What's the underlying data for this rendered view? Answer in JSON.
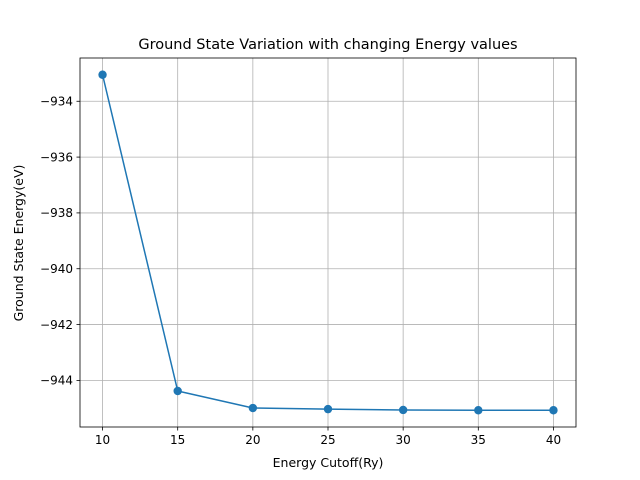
{
  "chart_data": {
    "type": "line",
    "title": "Ground State Variation with changing Energy values",
    "xlabel": "Energy Cutoff(Ry)",
    "ylabel": "Ground State Energy(eV)",
    "x": [
      10,
      15,
      20,
      25,
      30,
      35,
      40
    ],
    "series": [
      {
        "values": [
          -933.05,
          -944.38,
          -944.99,
          -945.03,
          -945.06,
          -945.07,
          -945.07
        ],
        "color": "#1f77b4",
        "marker": "circle"
      }
    ],
    "xticks": [
      10,
      15,
      20,
      25,
      30,
      35,
      40
    ],
    "xtick_labels": [
      "10",
      "15",
      "20",
      "25",
      "30",
      "35",
      "40"
    ],
    "yticks": [
      -934,
      -936,
      -938,
      -940,
      -942,
      -944
    ],
    "ytick_labels": [
      "−934",
      "−936",
      "−938",
      "−940",
      "−942",
      "−944"
    ],
    "xlim": [
      8.5,
      41.5
    ],
    "ylim": [
      -945.67,
      -932.45
    ],
    "grid": true,
    "legend": "none"
  }
}
